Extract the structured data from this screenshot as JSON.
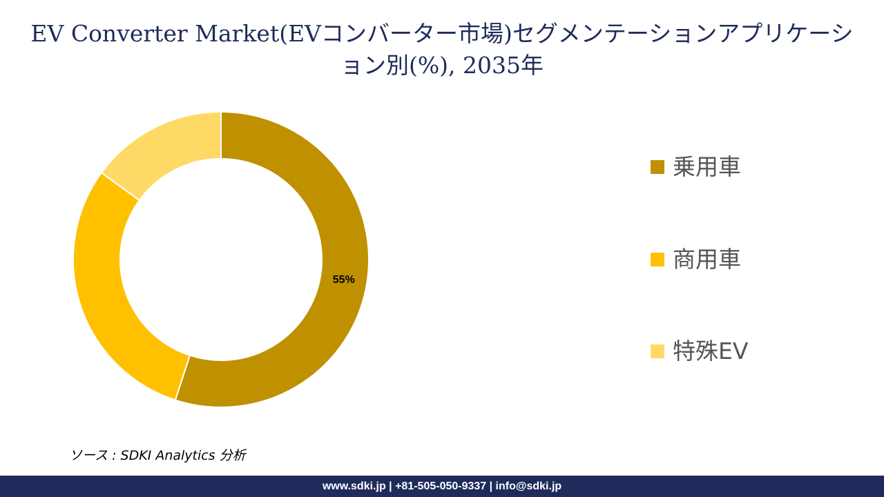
{
  "colors": {
    "passenger": "#bf9000",
    "commercial": "#ffc000",
    "special": "#ffd966",
    "footer_bg": "#1f2b5b",
    "title": "#1f2b5b"
  },
  "chart_data": {
    "type": "pie",
    "variant": "donut",
    "title": "EV Converter Market(EVコンバーター市場)セグメンテーションアプリケーション別(%), 2035年",
    "categories": [
      "乗用車",
      "商用車",
      "特殊EV"
    ],
    "values": [
      55,
      30,
      15
    ],
    "data_labels": [
      "55%",
      "",
      ""
    ],
    "legend_position": "right",
    "unit": "%"
  },
  "source": "ソース : SDKI Analytics 分析",
  "footer": "www.sdki.jp | +81-505-050-9337 | info@sdki.jp"
}
